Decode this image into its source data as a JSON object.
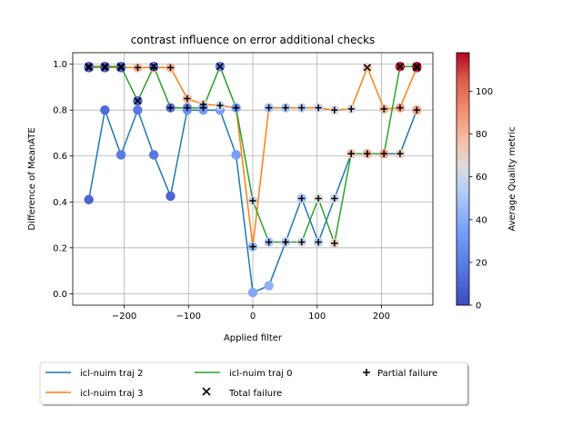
{
  "chart_data": {
    "type": "line",
    "title": "contrast influence on error additional checks",
    "xlabel": "Applied filter",
    "ylabel": "Difference of MeanATE",
    "xlim": [
      -280,
      280
    ],
    "ylim": [
      -0.05,
      1.05
    ],
    "xticks": [
      -200,
      -100,
      0,
      100,
      200
    ],
    "xtick_labels": [
      "−200",
      "−100",
      "0",
      "100",
      "200"
    ],
    "yticks": [
      0.0,
      0.2,
      0.4,
      0.6,
      0.8,
      1.0
    ],
    "ytick_labels": [
      "0.0",
      "0.2",
      "0.4",
      "0.6",
      "0.8",
      "1.0"
    ],
    "grid": true,
    "colorbar": {
      "label": "Average Quality metric",
      "range": [
        0,
        118
      ],
      "ticks": [
        0,
        20,
        40,
        60,
        80,
        100
      ],
      "tick_labels": [
        "0",
        "20",
        "40",
        "60",
        "80",
        "100"
      ],
      "colormap": "coolwarm"
    },
    "legend": {
      "placement": "below-plot",
      "entries": [
        {
          "label": "icl-nuim traj 2",
          "kind": "line",
          "color": "#1f77b4"
        },
        {
          "label": "icl-nuim traj 3",
          "kind": "line",
          "color": "#ff7f0e"
        },
        {
          "label": "icl-nuim traj 0",
          "kind": "line",
          "color": "#2ca02c"
        },
        {
          "label": "Total failure",
          "kind": "x-marker",
          "color": "#000000"
        },
        {
          "label": "Partial failure",
          "kind": "plus-marker",
          "color": "#000000"
        }
      ]
    },
    "series": [
      {
        "name": "icl-nuim traj 2",
        "color": "#1f77b4",
        "x": [
          -255,
          -230,
          -205,
          -179,
          -154,
          -128,
          -102,
          -77,
          -51,
          -26,
          0,
          25,
          51,
          76,
          102,
          127,
          153,
          178,
          204,
          229,
          255
        ],
        "y": [
          0.41,
          0.8,
          0.605,
          0.8,
          0.605,
          0.425,
          0.8,
          0.8,
          0.8,
          0.605,
          0.005,
          0.035,
          0.225,
          0.415,
          0.225,
          0.415,
          0.61,
          0.61,
          0.61,
          0.61,
          0.8
        ],
        "quality": [
          10,
          12,
          18,
          18,
          18,
          10,
          30,
          35,
          35,
          35,
          38,
          42,
          45,
          50,
          55,
          60,
          70,
          75,
          80,
          70,
          85
        ],
        "failure": [
          "none",
          "none",
          "none",
          "none",
          "none",
          "none",
          "none",
          "none",
          "none",
          "none",
          "none",
          "none",
          "partial",
          "partial",
          "partial",
          "partial",
          "partial",
          "partial",
          "partial",
          "partial",
          "partial"
        ]
      },
      {
        "name": "icl-nuim traj 3",
        "color": "#ff7f0e",
        "x": [
          -255,
          -230,
          -205,
          -179,
          -154,
          -128,
          -102,
          -77,
          -51,
          -26,
          0,
          25,
          51,
          76,
          102,
          127,
          153,
          178,
          204,
          229,
          255
        ],
        "y": [
          0.985,
          0.985,
          0.985,
          0.985,
          0.985,
          0.985,
          0.85,
          0.825,
          0.82,
          0.81,
          0.205,
          0.81,
          0.81,
          0.81,
          0.81,
          0.8,
          0.805,
          0.985,
          0.805,
          0.81,
          0.985
        ],
        "quality": [
          8,
          10,
          10,
          80,
          85,
          80,
          78,
          70,
          60,
          50,
          45,
          48,
          50,
          55,
          60,
          62,
          65,
          75,
          80,
          85,
          110
        ],
        "failure": [
          "total",
          "total",
          "total",
          "partial",
          "partial",
          "partial",
          "partial",
          "partial",
          "partial",
          "partial",
          "partial",
          "partial",
          "partial",
          "partial",
          "partial",
          "partial",
          "partial",
          "total",
          "partial",
          "partial",
          "total"
        ]
      },
      {
        "name": "icl-nuim traj 0",
        "color": "#2ca02c",
        "x": [
          -255,
          -230,
          -205,
          -179,
          -154,
          -128,
          -102,
          -77,
          -51,
          -26,
          0,
          25,
          51,
          76,
          102,
          127,
          153,
          178,
          204,
          229,
          255
        ],
        "y": [
          0.99,
          0.99,
          0.99,
          0.84,
          0.99,
          0.81,
          0.81,
          0.81,
          0.99,
          0.81,
          0.405,
          0.225,
          0.225,
          0.225,
          0.415,
          0.22,
          0.61,
          0.61,
          0.61,
          0.99,
          0.99
        ],
        "quality": [
          8,
          8,
          10,
          10,
          12,
          15,
          25,
          30,
          20,
          35,
          60,
          50,
          55,
          60,
          65,
          70,
          75,
          80,
          85,
          115,
          118
        ],
        "failure": [
          "total",
          "total",
          "total",
          "total",
          "total",
          "partial",
          "partial",
          "partial",
          "total",
          "partial",
          "partial",
          "partial",
          "partial",
          "partial",
          "partial",
          "partial",
          "partial",
          "partial",
          "partial",
          "total",
          "total"
        ]
      }
    ]
  }
}
